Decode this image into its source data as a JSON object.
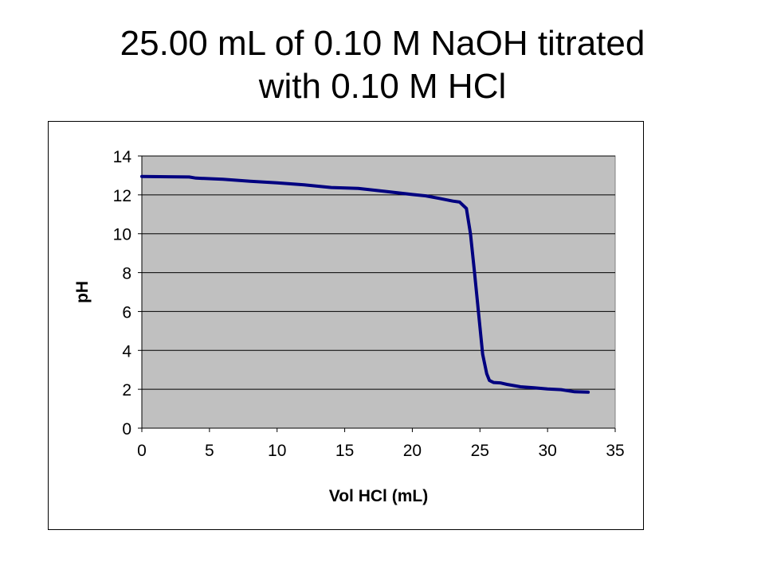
{
  "slide": {
    "title_line1": "25.00 mL of 0.10 M NaOH titrated",
    "title_line2": "with 0.10 M HCl"
  },
  "chart_data": {
    "type": "line",
    "title": "",
    "xlabel": "Vol HCl (mL)",
    "ylabel": "pH",
    "xlim": [
      0,
      35
    ],
    "ylim": [
      0,
      14
    ],
    "x_ticks": [
      0,
      5,
      10,
      15,
      20,
      25,
      30,
      35
    ],
    "y_ticks": [
      0,
      2,
      4,
      6,
      8,
      10,
      12,
      14
    ],
    "grid": "horizontal",
    "legend": "none",
    "series": [
      {
        "color": "#000080",
        "x": [
          0,
          2,
          3.5,
          4,
          6,
          8,
          10,
          12,
          14,
          16,
          18,
          20,
          21,
          22,
          23,
          23.5,
          24,
          24.3,
          24.6,
          24.9,
          25.2,
          25.5,
          25.7,
          26,
          26.5,
          27,
          28,
          29,
          30,
          31,
          32,
          33
        ],
        "y": [
          12.95,
          12.93,
          12.92,
          12.86,
          12.8,
          12.7,
          12.62,
          12.52,
          12.38,
          12.33,
          12.18,
          12.02,
          11.95,
          11.82,
          11.68,
          11.63,
          11.3,
          10.0,
          8.0,
          5.9,
          3.8,
          2.8,
          2.45,
          2.35,
          2.33,
          2.25,
          2.13,
          2.08,
          2.02,
          1.98,
          1.87,
          1.85
        ]
      }
    ]
  },
  "colors": {
    "plot_area": "#c0c0c0",
    "line": "#000080",
    "grid": "#000000"
  }
}
